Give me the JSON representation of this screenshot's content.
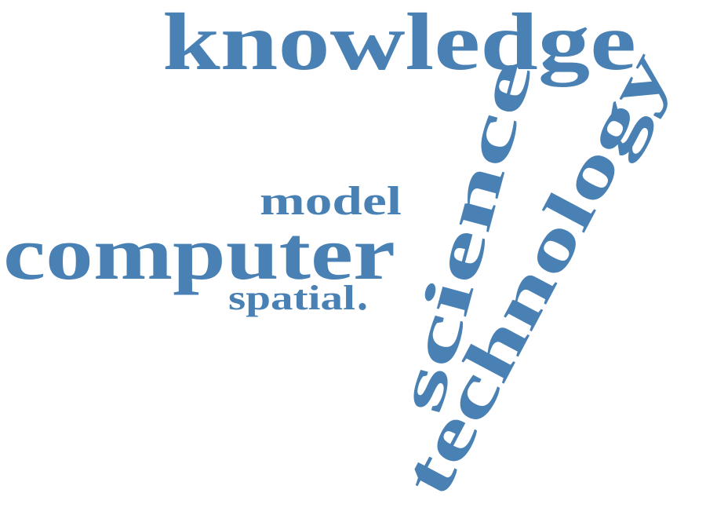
{
  "colors": {
    "word": "#4a81b4",
    "background": "#ffffff"
  },
  "words": {
    "knowledge": "knowledge",
    "science": "science",
    "technology": "technology",
    "model": "model",
    "computer": "computer",
    "spatial": "spatial",
    "dot": "."
  }
}
